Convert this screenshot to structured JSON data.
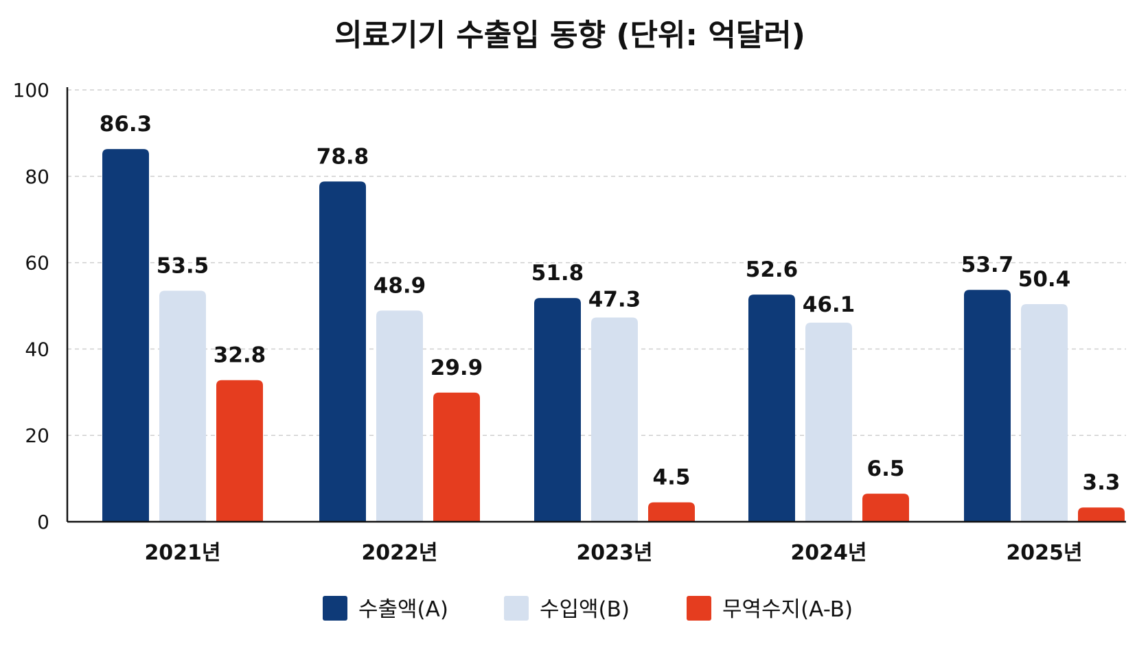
{
  "chart_data": {
    "type": "bar",
    "title": "의료기기 수출입 동향 (단위: 억달러)",
    "categories": [
      "2021년",
      "2022년",
      "2023년",
      "2024년",
      "2025년"
    ],
    "series": [
      {
        "name": "수출액(A)",
        "color": "#0e3a78",
        "values": [
          86.3,
          78.8,
          51.8,
          52.6,
          53.7
        ]
      },
      {
        "name": "수입액(B)",
        "color": "#d5e0ef",
        "values": [
          53.5,
          48.9,
          47.3,
          46.1,
          50.4
        ]
      },
      {
        "name": "무역수지(A-B)",
        "color": "#e53d1f",
        "values": [
          32.8,
          29.9,
          4.5,
          6.5,
          3.3
        ]
      }
    ],
    "ylim": [
      0,
      100
    ],
    "yticks": [
      0,
      20,
      40,
      60,
      80,
      100
    ],
    "grid": true,
    "legend": "bottom"
  }
}
